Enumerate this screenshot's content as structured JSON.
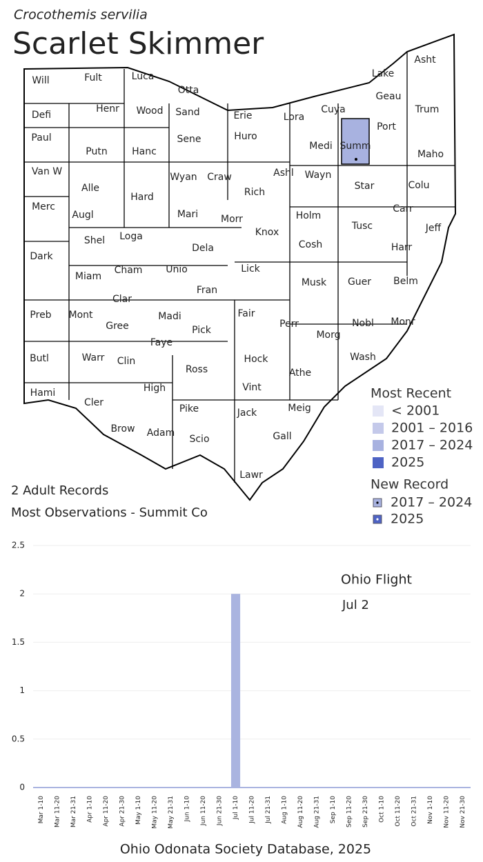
{
  "header": {
    "scientific_name": "Crocothemis servilia",
    "common_name": "Scarlet Skimmer"
  },
  "map": {
    "counties": [
      "Will",
      "Fult",
      "Luca",
      "Otta",
      "Lake",
      "Asht",
      "Geau",
      "Trum",
      "Defi",
      "Henr",
      "Wood",
      "Sand",
      "Erie",
      "Lora",
      "Cuya",
      "Port",
      "Paul",
      "Putn",
      "Hanc",
      "Sene",
      "Huro",
      "Medi",
      "Summ",
      "Maho",
      "Van W",
      "Alle",
      "Hard",
      "Wyan",
      "Craw",
      "Rich",
      "Ashl",
      "Wayn",
      "Star",
      "Colu",
      "Merc",
      "Augl",
      "Mari",
      "Morr",
      "Knox",
      "Holm",
      "Tusc",
      "Carr",
      "Jeff",
      "Shel",
      "Loga",
      "Dela",
      "Cosh",
      "Harr",
      "Dark",
      "Miam",
      "Cham",
      "Unio",
      "Lick",
      "Musk",
      "Guer",
      "Belm",
      "Clar",
      "Fran",
      "Madi",
      "Fair",
      "Perr",
      "Morg",
      "Nobl",
      "Monr",
      "Preb",
      "Mont",
      "Gree",
      "Pick",
      "Faye",
      "Butl",
      "Warr",
      "Clin",
      "Hock",
      "Wash",
      "Ross",
      "Athe",
      "Hami",
      "Cler",
      "High",
      "Vint",
      "Meig",
      "Pike",
      "Jack",
      "Brow",
      "Adam",
      "Scio",
      "Gall",
      "Lawr"
    ]
  },
  "legend": {
    "most_recent_title": "Most Recent",
    "most_recent": [
      {
        "label": "< 2001",
        "color": "#e4e6f6"
      },
      {
        "label": "2001 – 2016",
        "color": "#c4c9ea"
      },
      {
        "label": "2017 – 2024",
        "color": "#a8b2e0"
      },
      {
        "label": "2025",
        "color": "#4e63c4"
      }
    ],
    "new_record_title": "New Record",
    "new_record": [
      {
        "label": "2017 – 2024",
        "color": "#a8b2e0"
      },
      {
        "label": "2025",
        "color": "#4e63c4"
      }
    ]
  },
  "summary": {
    "records": "2 Adult Records",
    "most_observations": "Most Observations - Summit Co"
  },
  "chart_data": {
    "type": "bar",
    "annotation": "Ohio Flight",
    "annotation_date": "Jul 2",
    "color": "#aab4e0",
    "categories": [
      "Mar 1-10",
      "Mar 11-20",
      "Mar 21-31",
      "Apr 1-10",
      "Apr 11-20",
      "Apr 21-30",
      "May 1-10",
      "May 11-20",
      "May 21-31",
      "Jun 1-10",
      "Jun 11-20",
      "Jun 21-30",
      "Jul 1-10",
      "Jul 11-20",
      "Jul 21-31",
      "Aug 1-10",
      "Aug 11-20",
      "Aug 21-31",
      "Sep 1-10",
      "Sep 11-20",
      "Sep 21-30",
      "Oct 1-10",
      "Oct 11-20",
      "Oct 21-31",
      "Nov 1-10",
      "Nov 11-20",
      "Nov 21-30"
    ],
    "values": [
      0,
      0,
      0,
      0,
      0,
      0,
      0,
      0,
      0,
      0,
      0,
      0,
      2,
      0,
      0,
      0,
      0,
      0,
      0,
      0,
      0,
      0,
      0,
      0,
      0,
      0,
      0
    ],
    "ylim": [
      0,
      2.5
    ],
    "yticks": [
      0,
      0.5,
      1,
      1.5,
      2,
      2.5
    ],
    "grid": true
  },
  "footer": "Ohio Odonata Society Database, 2025"
}
